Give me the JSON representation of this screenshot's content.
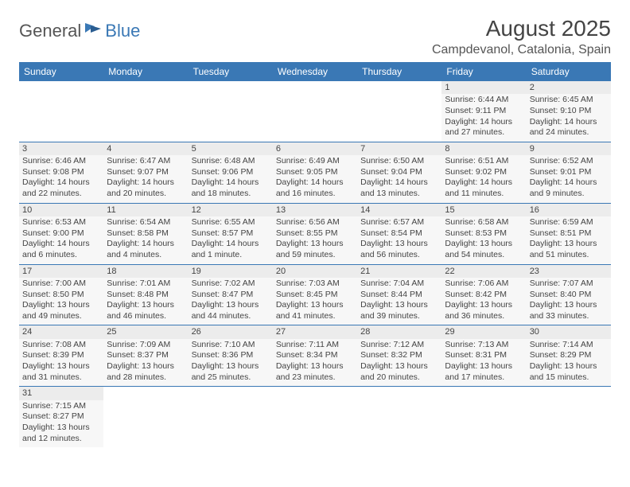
{
  "logo": {
    "part1": "General",
    "part2": "Blue"
  },
  "title": "August 2025",
  "subtitle": "Campdevanol, Catalonia, Spain",
  "colors": {
    "brand": "#3a78b5",
    "header_bg": "#3a78b5",
    "header_text": "#ffffff",
    "cell_bg": "#f7f7f7",
    "daynum_bg": "#ececec"
  },
  "day_headers": [
    "Sunday",
    "Monday",
    "Tuesday",
    "Wednesday",
    "Thursday",
    "Friday",
    "Saturday"
  ],
  "weeks": [
    [
      null,
      null,
      null,
      null,
      null,
      {
        "n": "1",
        "sr": "Sunrise: 6:44 AM",
        "ss": "Sunset: 9:11 PM",
        "d1": "Daylight: 14 hours",
        "d2": "and 27 minutes."
      },
      {
        "n": "2",
        "sr": "Sunrise: 6:45 AM",
        "ss": "Sunset: 9:10 PM",
        "d1": "Daylight: 14 hours",
        "d2": "and 24 minutes."
      }
    ],
    [
      {
        "n": "3",
        "sr": "Sunrise: 6:46 AM",
        "ss": "Sunset: 9:08 PM",
        "d1": "Daylight: 14 hours",
        "d2": "and 22 minutes."
      },
      {
        "n": "4",
        "sr": "Sunrise: 6:47 AM",
        "ss": "Sunset: 9:07 PM",
        "d1": "Daylight: 14 hours",
        "d2": "and 20 minutes."
      },
      {
        "n": "5",
        "sr": "Sunrise: 6:48 AM",
        "ss": "Sunset: 9:06 PM",
        "d1": "Daylight: 14 hours",
        "d2": "and 18 minutes."
      },
      {
        "n": "6",
        "sr": "Sunrise: 6:49 AM",
        "ss": "Sunset: 9:05 PM",
        "d1": "Daylight: 14 hours",
        "d2": "and 16 minutes."
      },
      {
        "n": "7",
        "sr": "Sunrise: 6:50 AM",
        "ss": "Sunset: 9:04 PM",
        "d1": "Daylight: 14 hours",
        "d2": "and 13 minutes."
      },
      {
        "n": "8",
        "sr": "Sunrise: 6:51 AM",
        "ss": "Sunset: 9:02 PM",
        "d1": "Daylight: 14 hours",
        "d2": "and 11 minutes."
      },
      {
        "n": "9",
        "sr": "Sunrise: 6:52 AM",
        "ss": "Sunset: 9:01 PM",
        "d1": "Daylight: 14 hours",
        "d2": "and 9 minutes."
      }
    ],
    [
      {
        "n": "10",
        "sr": "Sunrise: 6:53 AM",
        "ss": "Sunset: 9:00 PM",
        "d1": "Daylight: 14 hours",
        "d2": "and 6 minutes."
      },
      {
        "n": "11",
        "sr": "Sunrise: 6:54 AM",
        "ss": "Sunset: 8:58 PM",
        "d1": "Daylight: 14 hours",
        "d2": "and 4 minutes."
      },
      {
        "n": "12",
        "sr": "Sunrise: 6:55 AM",
        "ss": "Sunset: 8:57 PM",
        "d1": "Daylight: 14 hours",
        "d2": "and 1 minute."
      },
      {
        "n": "13",
        "sr": "Sunrise: 6:56 AM",
        "ss": "Sunset: 8:55 PM",
        "d1": "Daylight: 13 hours",
        "d2": "and 59 minutes."
      },
      {
        "n": "14",
        "sr": "Sunrise: 6:57 AM",
        "ss": "Sunset: 8:54 PM",
        "d1": "Daylight: 13 hours",
        "d2": "and 56 minutes."
      },
      {
        "n": "15",
        "sr": "Sunrise: 6:58 AM",
        "ss": "Sunset: 8:53 PM",
        "d1": "Daylight: 13 hours",
        "d2": "and 54 minutes."
      },
      {
        "n": "16",
        "sr": "Sunrise: 6:59 AM",
        "ss": "Sunset: 8:51 PM",
        "d1": "Daylight: 13 hours",
        "d2": "and 51 minutes."
      }
    ],
    [
      {
        "n": "17",
        "sr": "Sunrise: 7:00 AM",
        "ss": "Sunset: 8:50 PM",
        "d1": "Daylight: 13 hours",
        "d2": "and 49 minutes."
      },
      {
        "n": "18",
        "sr": "Sunrise: 7:01 AM",
        "ss": "Sunset: 8:48 PM",
        "d1": "Daylight: 13 hours",
        "d2": "and 46 minutes."
      },
      {
        "n": "19",
        "sr": "Sunrise: 7:02 AM",
        "ss": "Sunset: 8:47 PM",
        "d1": "Daylight: 13 hours",
        "d2": "and 44 minutes."
      },
      {
        "n": "20",
        "sr": "Sunrise: 7:03 AM",
        "ss": "Sunset: 8:45 PM",
        "d1": "Daylight: 13 hours",
        "d2": "and 41 minutes."
      },
      {
        "n": "21",
        "sr": "Sunrise: 7:04 AM",
        "ss": "Sunset: 8:44 PM",
        "d1": "Daylight: 13 hours",
        "d2": "and 39 minutes."
      },
      {
        "n": "22",
        "sr": "Sunrise: 7:06 AM",
        "ss": "Sunset: 8:42 PM",
        "d1": "Daylight: 13 hours",
        "d2": "and 36 minutes."
      },
      {
        "n": "23",
        "sr": "Sunrise: 7:07 AM",
        "ss": "Sunset: 8:40 PM",
        "d1": "Daylight: 13 hours",
        "d2": "and 33 minutes."
      }
    ],
    [
      {
        "n": "24",
        "sr": "Sunrise: 7:08 AM",
        "ss": "Sunset: 8:39 PM",
        "d1": "Daylight: 13 hours",
        "d2": "and 31 minutes."
      },
      {
        "n": "25",
        "sr": "Sunrise: 7:09 AM",
        "ss": "Sunset: 8:37 PM",
        "d1": "Daylight: 13 hours",
        "d2": "and 28 minutes."
      },
      {
        "n": "26",
        "sr": "Sunrise: 7:10 AM",
        "ss": "Sunset: 8:36 PM",
        "d1": "Daylight: 13 hours",
        "d2": "and 25 minutes."
      },
      {
        "n": "27",
        "sr": "Sunrise: 7:11 AM",
        "ss": "Sunset: 8:34 PM",
        "d1": "Daylight: 13 hours",
        "d2": "and 23 minutes."
      },
      {
        "n": "28",
        "sr": "Sunrise: 7:12 AM",
        "ss": "Sunset: 8:32 PM",
        "d1": "Daylight: 13 hours",
        "d2": "and 20 minutes."
      },
      {
        "n": "29",
        "sr": "Sunrise: 7:13 AM",
        "ss": "Sunset: 8:31 PM",
        "d1": "Daylight: 13 hours",
        "d2": "and 17 minutes."
      },
      {
        "n": "30",
        "sr": "Sunrise: 7:14 AM",
        "ss": "Sunset: 8:29 PM",
        "d1": "Daylight: 13 hours",
        "d2": "and 15 minutes."
      }
    ],
    [
      {
        "n": "31",
        "sr": "Sunrise: 7:15 AM",
        "ss": "Sunset: 8:27 PM",
        "d1": "Daylight: 13 hours",
        "d2": "and 12 minutes."
      },
      null,
      null,
      null,
      null,
      null,
      null
    ]
  ]
}
